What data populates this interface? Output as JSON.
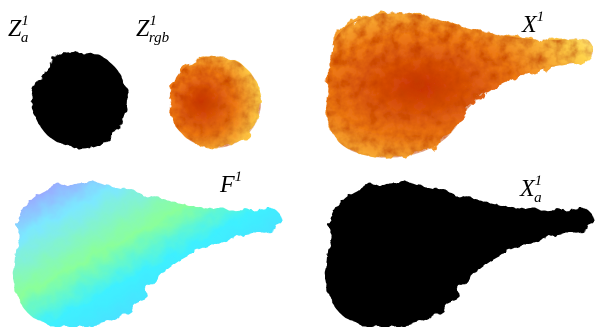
{
  "panels": [
    {
      "symbol": "Z",
      "sub": "a",
      "sup": "1"
    },
    {
      "symbol": "Z",
      "sub": "rgb",
      "sup": "1"
    },
    {
      "symbol": "X",
      "sup": "1"
    },
    {
      "symbol": "F",
      "sup": "1"
    },
    {
      "symbol": "X",
      "sub": "a",
      "sup": "1"
    }
  ]
}
